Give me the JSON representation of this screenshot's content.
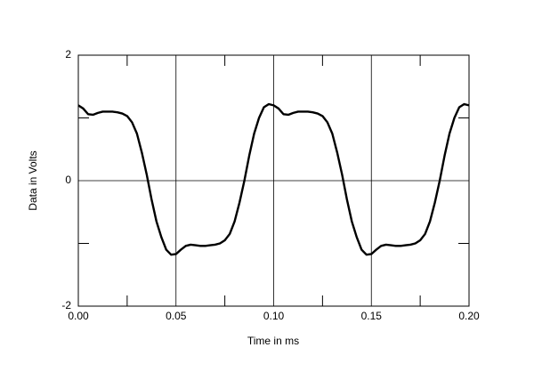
{
  "chart_data": {
    "type": "line",
    "x_label": "Time in ms",
    "y_label": "Data in Volts",
    "xlim": [
      0,
      0.2
    ],
    "ylim": [
      -2,
      2
    ],
    "xticks": [
      {
        "value": 0,
        "label": "0.00"
      },
      0.05,
      {
        "value": 0.1,
        "label": "0.10"
      },
      0.15,
      {
        "value": 0.2,
        "label": "0.20"
      }
    ],
    "yticks": [
      -2,
      0,
      2
    ],
    "xminor": [
      0.025,
      0.075,
      0.125,
      0.175
    ],
    "yminor": [
      -1,
      1
    ],
    "grid": true,
    "x": [
      0,
      0.0025,
      0.005,
      0.0075,
      0.01,
      0.0125,
      0.015,
      0.0175,
      0.02,
      0.0225,
      0.025,
      0.0275,
      0.03,
      0.0325,
      0.035,
      0.0375,
      0.04,
      0.0425,
      0.045,
      0.0475,
      0.05,
      0.0525,
      0.055,
      0.0575,
      0.06,
      0.0625,
      0.065,
      0.0675,
      0.07,
      0.0725,
      0.075,
      0.0775,
      0.08,
      0.0825,
      0.085,
      0.0875,
      0.09,
      0.0925,
      0.095,
      0.0975,
      0.1,
      0.1025,
      0.105,
      0.1075,
      0.11,
      0.1125,
      0.115,
      0.1175,
      0.12,
      0.1225,
      0.125,
      0.1275,
      0.13,
      0.1325,
      0.135,
      0.1375,
      0.14,
      0.1425,
      0.145,
      0.1475,
      0.15,
      0.1525,
      0.155,
      0.1575,
      0.16,
      0.1625,
      0.165,
      0.1675,
      0.17,
      0.1725,
      0.175,
      0.1775,
      0.18,
      0.1825,
      0.185,
      0.1875,
      0.19,
      0.1925,
      0.195,
      0.1975,
      0.2
    ],
    "series": [
      {
        "color": "#000000",
        "values": [
          1.2,
          1.15,
          1.06,
          1.05,
          1.08,
          1.1,
          1.1,
          1.1,
          1.09,
          1.07,
          1.03,
          0.93,
          0.75,
          0.45,
          0.1,
          -0.3,
          -0.65,
          -0.9,
          -1.1,
          -1.18,
          -1.17,
          -1.1,
          -1.04,
          -1.02,
          -1.03,
          -1.04,
          -1.04,
          -1.03,
          -1.02,
          -1.0,
          -0.95,
          -0.85,
          -0.65,
          -0.35,
          0.0,
          0.4,
          0.75,
          1.0,
          1.17,
          1.22,
          1.2,
          1.15,
          1.06,
          1.05,
          1.08,
          1.1,
          1.1,
          1.1,
          1.09,
          1.07,
          1.03,
          0.93,
          0.75,
          0.45,
          0.1,
          -0.3,
          -0.65,
          -0.9,
          -1.1,
          -1.18,
          -1.17,
          -1.1,
          -1.04,
          -1.02,
          -1.03,
          -1.04,
          -1.04,
          -1.03,
          -1.02,
          -1.0,
          -0.95,
          -0.85,
          -0.65,
          -0.35,
          0.0,
          0.4,
          0.75,
          1.0,
          1.17,
          1.22,
          1.2
        ]
      }
    ]
  }
}
